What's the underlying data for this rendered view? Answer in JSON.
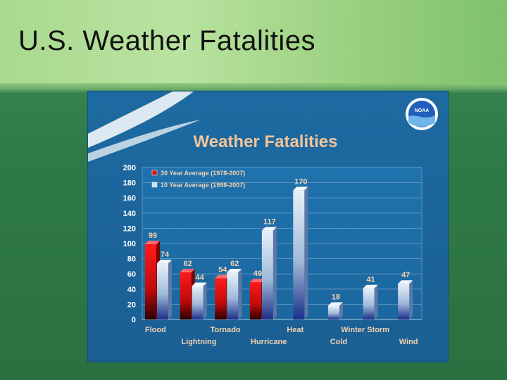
{
  "slide": {
    "title": "U.S. Weather Fatalities"
  },
  "logo": {
    "text": "NOAA",
    "icon": "noaa-logo-icon"
  },
  "colors": {
    "series_30yr": "#d81010",
    "series_10yr": "#c9ddef",
    "panel_bg": "#1e6ea6",
    "chart_title": "#f2c49a"
  },
  "chart_data": {
    "type": "bar",
    "title": "Weather Fatalities",
    "categories": [
      "Flood",
      "Lightning",
      "Tornado",
      "Hurricane",
      "Heat",
      "Cold",
      "Winter Storm",
      "Wind"
    ],
    "series": [
      {
        "name": "30 Year Average (1978-2007)",
        "values": [
          99,
          62,
          54,
          49,
          null,
          null,
          null,
          null
        ]
      },
      {
        "name": "10 Year Average (1998-2007)",
        "values": [
          74,
          44,
          62,
          117,
          170,
          18,
          41,
          47
        ]
      }
    ],
    "yticks": [
      0,
      20,
      40,
      60,
      80,
      100,
      120,
      140,
      160,
      180,
      200
    ],
    "ylim": [
      0,
      200
    ],
    "grid": true,
    "legend": "top-left"
  }
}
